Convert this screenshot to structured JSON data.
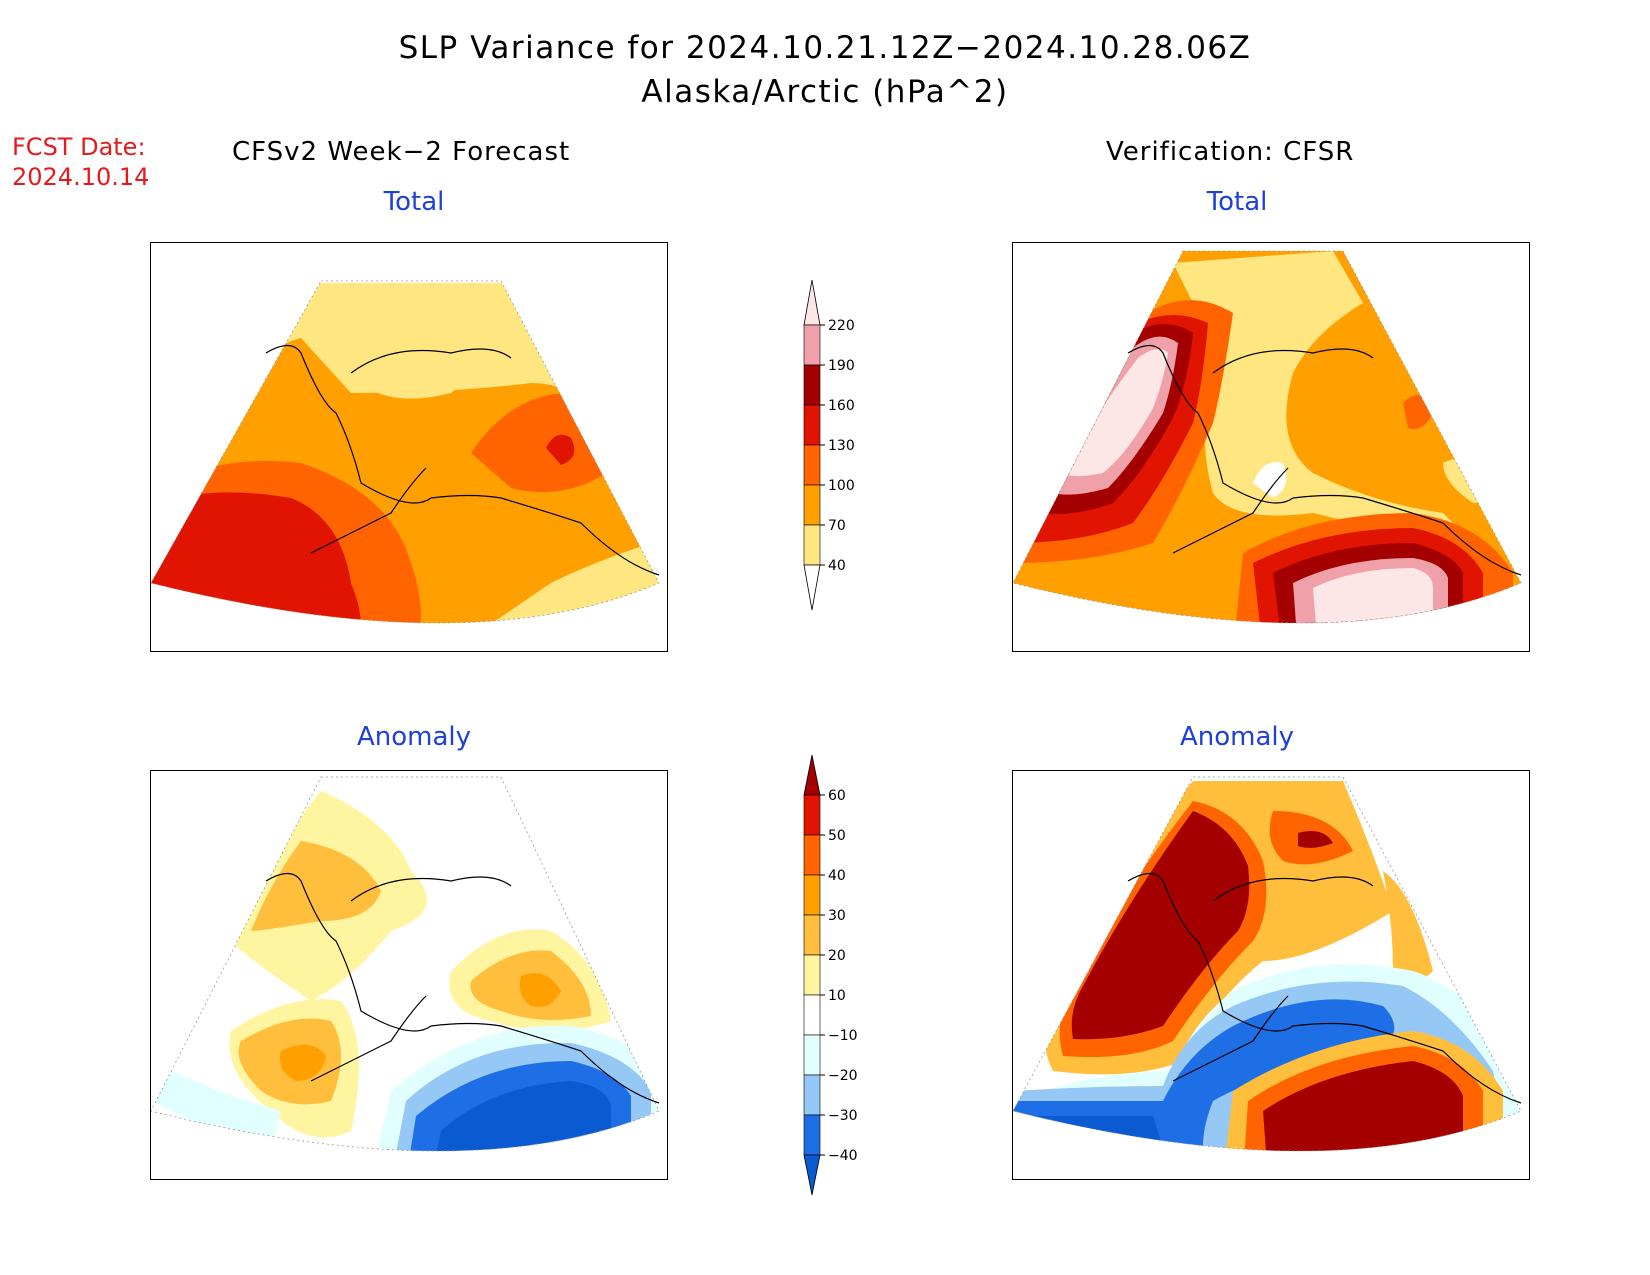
{
  "title": {
    "line1": "SLP Variance for 2024.10.21.12Z−2024.10.28.06Z",
    "line2": "Alaska/Arctic (hPa^2)"
  },
  "fcst_date": {
    "label": "FCST Date:",
    "value": "2024.10.14"
  },
  "columns": {
    "left": "CFSv2 Week−2 Forecast",
    "right": "Verification: CFSR"
  },
  "panels": {
    "forecast_total": "Total",
    "verif_total": "Total",
    "forecast_anomaly": "Anomaly",
    "verif_anomaly": "Anomaly"
  },
  "colorbars": {
    "total": {
      "levels": [
        "40",
        "70",
        "100",
        "130",
        "160",
        "190",
        "220"
      ],
      "colors": [
        "#ffe680",
        "#ffa000",
        "#ff6400",
        "#e01400",
        "#a50000",
        "#f0a0a8",
        "#fde6e6"
      ]
    },
    "anomaly": {
      "levels": [
        "−40",
        "−30",
        "−20",
        "−10",
        "10",
        "20",
        "30",
        "40",
        "50",
        "60"
      ],
      "colors": [
        "#0a5ad2",
        "#1e6ee6",
        "#96c8f5",
        "#e1ffff",
        "#ffffff",
        "#fff5a0",
        "#ffbe3c",
        "#ffa000",
        "#ff6400",
        "#e01400",
        "#a50000"
      ]
    }
  }
}
